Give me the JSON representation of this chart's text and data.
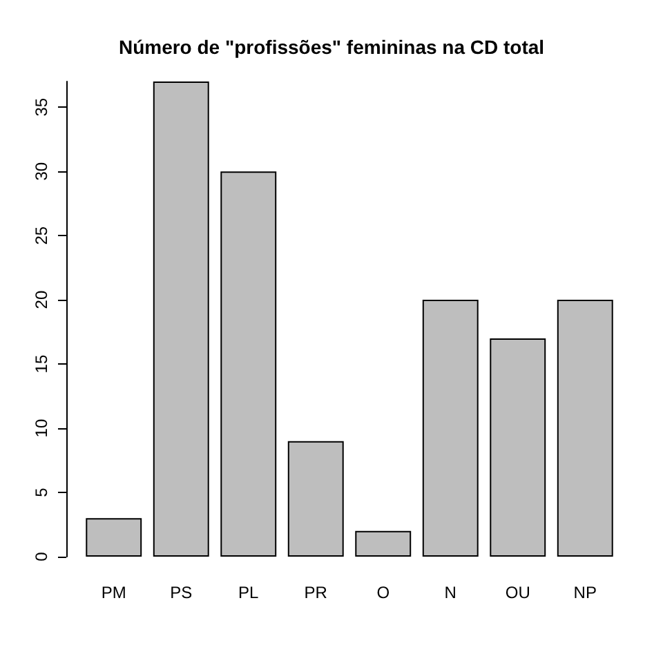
{
  "chart_data": {
    "type": "bar",
    "title": "Número de \"profissões\" femininas na CD total",
    "categories": [
      "PM",
      "PS",
      "PL",
      "PR",
      "O",
      "N",
      "OU",
      "NP"
    ],
    "values": [
      3,
      37,
      30,
      9,
      2,
      20,
      17,
      20
    ],
    "color": "#bebebe",
    "ylim": [
      0,
      37
    ],
    "yticks": [
      0,
      5,
      10,
      15,
      20,
      25,
      30,
      35
    ],
    "grid": false
  }
}
